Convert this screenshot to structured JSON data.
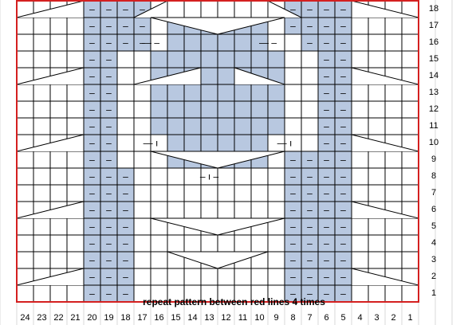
{
  "instruction": "repeat pattern between red lines 4 times",
  "columns": [
    "24",
    "23",
    "22",
    "21",
    "20",
    "19",
    "18",
    "17",
    "16",
    "15",
    "14",
    "13",
    "12",
    "11",
    "10",
    "9",
    "8",
    "7",
    "6",
    "5",
    "4",
    "3",
    "2",
    "1"
  ],
  "rows": [
    "1",
    "2",
    "3",
    "4",
    "5",
    "6",
    "7",
    "8",
    "9",
    "10",
    "11",
    "12",
    "13",
    "14",
    "15",
    "16",
    "17",
    "18"
  ],
  "colors": {
    "purl_fill": "#b8c8e0",
    "grid_line": "#000000",
    "repeat_border": "#d42020",
    "faint_grid": "#d8d8d8"
  },
  "symbols": {
    "purl": "–",
    "twist": "ı",
    "dash": "—"
  },
  "chart_data": {
    "type": "table",
    "title": "",
    "purl_cells": [
      {
        "row": 1,
        "cols": [
          20,
          19,
          18,
          8,
          7,
          6,
          5
        ]
      },
      {
        "row": 2,
        "cols": [
          20,
          19,
          18,
          8,
          7,
          6,
          5
        ]
      },
      {
        "row": 3,
        "cols": [
          20,
          19,
          18,
          8,
          7,
          6,
          5
        ]
      },
      {
        "row": 4,
        "cols": [
          20,
          19,
          18,
          8,
          7,
          6,
          5
        ]
      },
      {
        "row": 5,
        "cols": [
          20,
          19,
          18,
          8,
          7,
          6,
          5
        ]
      },
      {
        "row": 6,
        "cols": [
          20,
          19,
          18,
          8,
          7,
          6,
          5
        ]
      },
      {
        "row": 7,
        "cols": [
          20,
          19,
          18,
          8,
          7,
          6,
          5
        ]
      },
      {
        "row": 8,
        "cols": [
          20,
          19,
          18,
          8,
          7,
          6,
          5
        ]
      },
      {
        "row": 9,
        "cols": [
          20,
          19,
          8,
          7,
          6,
          5
        ]
      },
      {
        "row": 10,
        "cols": [
          20,
          19,
          6,
          5
        ]
      },
      {
        "row": 11,
        "cols": [
          20,
          19,
          6,
          5
        ]
      },
      {
        "row": 12,
        "cols": [
          20,
          19,
          6,
          5
        ]
      },
      {
        "row": 13,
        "cols": [
          20,
          19,
          6,
          5
        ]
      },
      {
        "row": 14,
        "cols": [
          20,
          19,
          6,
          5
        ]
      },
      {
        "row": 15,
        "cols": [
          20,
          19,
          6,
          5
        ]
      },
      {
        "row": 16,
        "cols": [
          20,
          19,
          18,
          17,
          7,
          6,
          5
        ]
      },
      {
        "row": 17,
        "cols": [
          20,
          19,
          18,
          17,
          8,
          7,
          6,
          5
        ]
      },
      {
        "row": 18,
        "cols": [
          20,
          19,
          18,
          17,
          8,
          7,
          6,
          5
        ]
      }
    ],
    "blue_fill_cells": [
      {
        "row": 9,
        "cols": [
          15,
          14,
          13,
          12,
          11,
          10
        ]
      },
      {
        "row": 10,
        "cols": [
          15,
          14,
          13,
          12,
          11,
          10
        ]
      },
      {
        "row": 11,
        "cols": [
          16,
          15,
          14,
          13,
          12,
          11,
          10,
          9
        ]
      },
      {
        "row": 12,
        "cols": [
          16,
          15,
          14,
          13,
          12,
          11,
          10,
          9
        ]
      },
      {
        "row": 13,
        "cols": [
          16,
          15,
          14,
          13,
          12,
          11,
          10,
          9
        ]
      },
      {
        "row": 14,
        "cols": [
          16,
          15,
          14,
          13,
          12,
          11,
          10,
          9
        ]
      },
      {
        "row": 15,
        "cols": [
          16,
          15,
          14,
          13,
          12,
          11,
          10,
          9
        ]
      },
      {
        "row": 16,
        "cols": [
          15,
          14,
          13,
          12,
          11,
          10
        ]
      },
      {
        "row": 17,
        "cols": [
          15,
          14,
          13,
          12,
          11,
          10
        ]
      },
      {
        "row": 18,
        "cols": []
      }
    ],
    "twist_markers": [
      {
        "row": 8,
        "cols": [
          14,
          13,
          12
        ],
        "label": "– ı –"
      },
      {
        "row": 10,
        "cols": [
          17,
          16
        ],
        "label": "— ı"
      },
      {
        "row": 10,
        "cols": [
          9,
          8
        ],
        "label": "— ı"
      },
      {
        "row": 16,
        "cols": [
          17,
          16
        ],
        "label": "— –"
      },
      {
        "row": 16,
        "cols": [
          10,
          9
        ],
        "label": "— –"
      }
    ],
    "repeat_border": {
      "from_col": 24,
      "to_col": 1,
      "from_row": 1,
      "to_row": 18
    }
  }
}
